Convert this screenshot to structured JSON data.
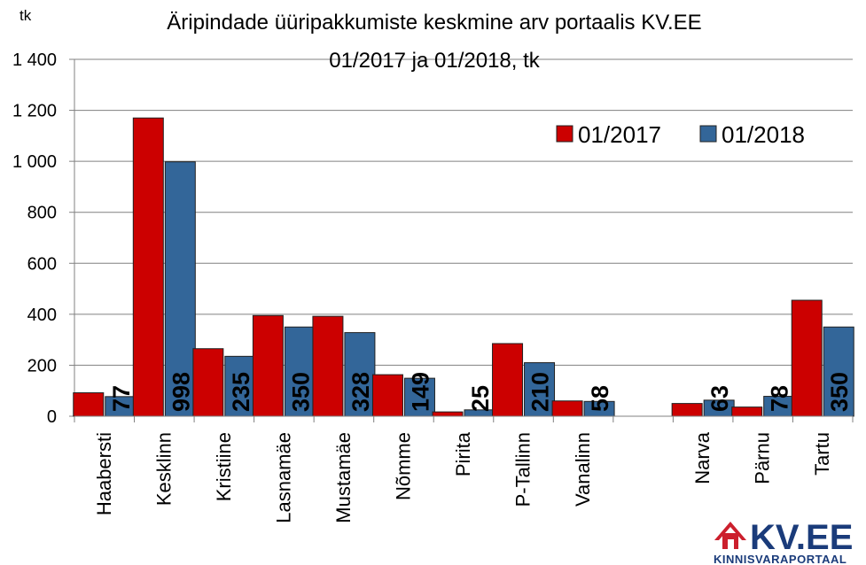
{
  "chart_data": {
    "type": "bar",
    "title_lines": [
      "Äripindade üüripakkumiste keskmine arv portaalis KV.EE",
      "01/2017 ja 01/2018, tk"
    ],
    "ylabel": "tk",
    "ylim": [
      0,
      1400
    ],
    "yticks": [
      0,
      200,
      400,
      600,
      800,
      1000,
      1200,
      1400
    ],
    "ytick_labels": [
      "0",
      "200",
      "400",
      "600",
      "800",
      "1 000",
      "1 200",
      "1 400"
    ],
    "grid": true,
    "legend_position": "top-right",
    "categories": [
      "Haabersti",
      "Kesklinn",
      "Kristiine",
      "Lasnamäe",
      "Mustamäe",
      "Nõmme",
      "Pirita",
      "P-Tallinn",
      "Vanalinn",
      "",
      "Narva",
      "Pärnu",
      "Tartu"
    ],
    "series": [
      {
        "name": "01/2017",
        "color": "#cc0000",
        "values": [
          92,
          1170,
          265,
          395,
          392,
          163,
          17,
          285,
          60,
          null,
          50,
          36,
          455
        ]
      },
      {
        "name": "01/2018",
        "color": "#336699",
        "values": [
          77,
          998,
          235,
          350,
          328,
          149,
          25,
          210,
          58,
          null,
          63,
          78,
          350
        ]
      }
    ],
    "data_labels": [
      "77",
      "998",
      "235",
      "350",
      "328",
      "149",
      "25",
      "210",
      "58",
      "",
      "63",
      "78",
      "350"
    ]
  },
  "logo": {
    "name": "KV.EE",
    "tagline": "KINNISVARAPORTAAL",
    "red": "#cc1f2d",
    "blue": "#1a3b7a"
  }
}
